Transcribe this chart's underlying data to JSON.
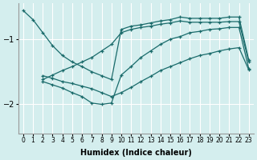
{
  "xlabel": "Humidex (Indice chaleur)",
  "bg_color": "#d4eeee",
  "line_color": "#1a6b6b",
  "grid_color": "#ffffff",
  "xlim": [
    -0.5,
    23.5
  ],
  "ylim": [
    -2.45,
    -0.45
  ],
  "yticks": [
    -2,
    -1
  ],
  "xticks": [
    0,
    1,
    2,
    3,
    4,
    5,
    6,
    7,
    8,
    9,
    10,
    11,
    12,
    13,
    14,
    15,
    16,
    17,
    18,
    19,
    20,
    21,
    22,
    23
  ],
  "series": [
    {
      "x": [
        0,
        1,
        2,
        3,
        4,
        5,
        6,
        7,
        8,
        9,
        10,
        11,
        12,
        13,
        14,
        15,
        16,
        17,
        18,
        19,
        20,
        21,
        22,
        23
      ],
      "y": [
        -0.56,
        -0.7,
        -0.9,
        -1.1,
        -1.25,
        -1.35,
        -1.42,
        -1.5,
        -1.56,
        -1.62,
        -0.85,
        -0.8,
        -0.78,
        -0.75,
        -0.72,
        -0.7,
        -0.66,
        -0.68,
        -0.68,
        -0.68,
        -0.68,
        -0.66,
        -0.66,
        -1.32
      ]
    },
    {
      "x": [
        2,
        3,
        4,
        5,
        6,
        7,
        8,
        9,
        10,
        11,
        12,
        13,
        14,
        15,
        16,
        17,
        18,
        19,
        20,
        21,
        22,
        23
      ],
      "y": [
        -1.62,
        -1.55,
        -1.48,
        -1.42,
        -1.35,
        -1.28,
        -1.18,
        -1.08,
        -0.9,
        -0.85,
        -0.82,
        -0.8,
        -0.77,
        -0.75,
        -0.72,
        -0.74,
        -0.74,
        -0.74,
        -0.74,
        -0.73,
        -0.73,
        -1.35
      ]
    },
    {
      "x": [
        2,
        3,
        4,
        5,
        6,
        7,
        8,
        9,
        10,
        11,
        12,
        13,
        14,
        15,
        16,
        17,
        18,
        19,
        20,
        21,
        22,
        23
      ],
      "y": [
        -1.65,
        -1.7,
        -1.75,
        -1.82,
        -1.88,
        -1.98,
        -2.0,
        -1.98,
        -1.55,
        -1.42,
        -1.28,
        -1.18,
        -1.08,
        -1.0,
        -0.96,
        -0.9,
        -0.88,
        -0.85,
        -0.84,
        -0.82,
        -0.82,
        -1.45
      ]
    },
    {
      "x": [
        2,
        3,
        4,
        5,
        6,
        7,
        8,
        9,
        10,
        11,
        12,
        13,
        14,
        15,
        16,
        17,
        18,
        19,
        20,
        21,
        22,
        23
      ],
      "y": [
        -1.56,
        -1.6,
        -1.65,
        -1.68,
        -1.72,
        -1.76,
        -1.82,
        -1.88,
        -1.82,
        -1.74,
        -1.65,
        -1.57,
        -1.48,
        -1.42,
        -1.36,
        -1.3,
        -1.25,
        -1.22,
        -1.18,
        -1.15,
        -1.13,
        -1.47
      ]
    }
  ]
}
